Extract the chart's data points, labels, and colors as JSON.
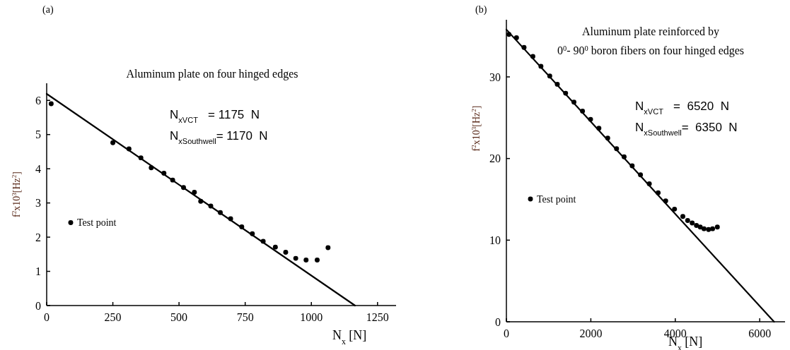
{
  "chart_data": [
    {
      "type": "scatter",
      "title": "Aluminum plate on four hinged edges",
      "xlabel": "N$_{x}$ [N]",
      "ylabel": "f$^{2}$x10$^{3}$[Hz$^{2}$]",
      "annotations": [
        "(a)",
        "N$_{x}$$_{VCT}$   = 1175  N",
        "N$_{x}$$_{Southwell}$= 1170  N"
      ],
      "xlim": [
        0,
        1320
      ],
      "ylim": [
        0,
        6.5
      ],
      "xticks": [
        0,
        250,
        500,
        750,
        1000,
        1250
      ],
      "yticks": [
        0,
        1,
        2,
        3,
        4,
        5,
        6
      ],
      "legend": "left",
      "grid": false,
      "series": [
        {
          "name": "Test point",
          "marker": "circle",
          "color": "#000000",
          "x": [
            17,
            250,
            311,
            356,
            395,
            443,
            476,
            517,
            558,
            582,
            620,
            656,
            695,
            737,
            777,
            818,
            864,
            903,
            941,
            980,
            1022,
            1063
          ],
          "values": [
            5.9,
            4.76,
            4.58,
            4.32,
            4.03,
            3.87,
            3.67,
            3.45,
            3.31,
            3.05,
            2.91,
            2.72,
            2.54,
            2.3,
            2.1,
            1.88,
            1.71,
            1.56,
            1.38,
            1.33,
            1.33,
            1.69
          ]
        },
        {
          "type": "line",
          "color": "#000000",
          "x": [
            0,
            1165
          ],
          "values": [
            6.19,
            0
          ]
        }
      ]
    },
    {
      "type": "scatter",
      "title": "Aluminum plate reinforced by\n0$^{0}$- 90$^{0}$  boron fibers on four hinged edges",
      "xlabel": "N$_{x}$ [N]",
      "ylabel": "f$^{2}$x10$^{3}$[Hz$^{2}$]",
      "annotations": [
        "(b)",
        "N$_{x}$$_{VCT}$   =  6520  N",
        "N$_{x}$$_{Southwell}$=  6350  N"
      ],
      "xlim": [
        0,
        6600
      ],
      "ylim": [
        0,
        37
      ],
      "xticks": [
        0,
        2000,
        4000,
        6000
      ],
      "yticks": [
        0,
        10,
        20,
        30
      ],
      "legend": "left",
      "grid": false,
      "series": [
        {
          "name": "Test point",
          "marker": "circle",
          "color": "#000000",
          "x": [
            60,
            239,
            418,
            627,
            818,
            1027,
            1206,
            1403,
            1600,
            1803,
            1994,
            2191,
            2400,
            2609,
            2788,
            2979,
            3176,
            3385,
            3594,
            3773,
            3982,
            4179,
            4293,
            4400,
            4501,
            4591,
            4681,
            4788,
            4884,
            4997
          ],
          "values": [
            35.2,
            34.8,
            33.6,
            32.5,
            31.3,
            30.1,
            29.1,
            28.0,
            26.9,
            25.8,
            24.8,
            23.7,
            22.5,
            21.2,
            20.2,
            19.1,
            18.0,
            16.9,
            15.8,
            14.8,
            13.8,
            12.9,
            12.4,
            12.1,
            11.8,
            11.6,
            11.4,
            11.3,
            11.4,
            11.6
          ]
        },
        {
          "type": "line",
          "color": "#000000",
          "x": [
            0,
            6340
          ],
          "values": [
            35.8,
            0
          ]
        }
      ]
    }
  ]
}
